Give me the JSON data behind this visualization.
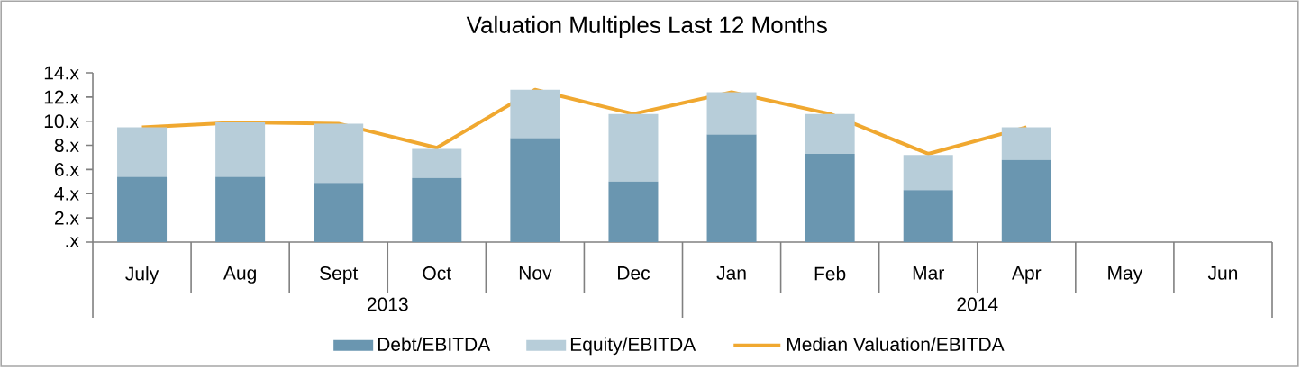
{
  "chart_data": {
    "type": "bar",
    "title": "Valuation Multiples Last 12 Months",
    "categories": [
      "July",
      "Aug",
      "Sept",
      "Oct",
      "Nov",
      "Dec",
      "Jan",
      "Feb",
      "Mar",
      "Apr",
      "May",
      "Jun"
    ],
    "series": [
      {
        "name": "Debt/EBITDA",
        "type": "bar",
        "color": "#6a96b0",
        "values": [
          5.4,
          5.4,
          4.9,
          5.3,
          8.6,
          5.0,
          8.9,
          7.3,
          4.3,
          6.8,
          null,
          null
        ]
      },
      {
        "name": "Equity/EBITDA",
        "type": "bar",
        "color": "#b7cdd9",
        "values": [
          4.1,
          4.5,
          4.9,
          2.4,
          4.0,
          5.6,
          3.5,
          3.3,
          2.9,
          2.7,
          null,
          null
        ]
      },
      {
        "name": "Median Valuation/EBITDA",
        "type": "line",
        "color": "#f0a830",
        "values": [
          9.5,
          9.9,
          9.8,
          7.8,
          12.6,
          10.6,
          12.4,
          10.6,
          7.3,
          9.5,
          null,
          null
        ]
      }
    ],
    "stacked": true,
    "ylim": [
      0,
      14
    ],
    "yticks": [
      {
        "value": 0,
        "label": ".x"
      },
      {
        "value": 2,
        "label": "2.x"
      },
      {
        "value": 4,
        "label": "4.x"
      },
      {
        "value": 6,
        "label": "6.x"
      },
      {
        "value": 8,
        "label": "8.x"
      },
      {
        "value": 10,
        "label": "10.x"
      },
      {
        "value": 12,
        "label": "12.x"
      },
      {
        "value": 14,
        "label": "14.x"
      }
    ],
    "legend": "bottom",
    "annotations": [
      "2013",
      "2014"
    ]
  }
}
